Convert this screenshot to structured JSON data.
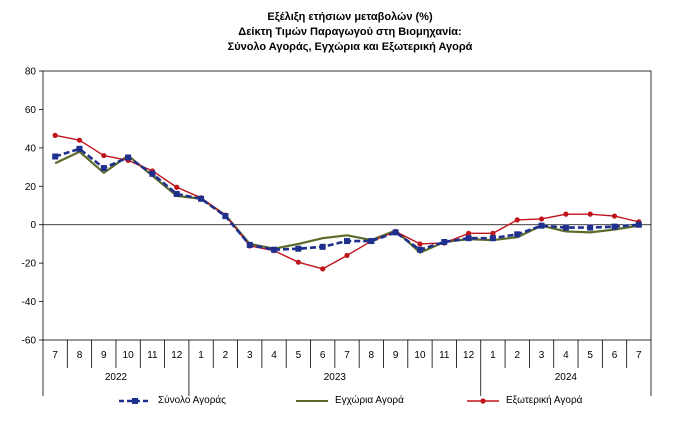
{
  "chart_data": {
    "type": "line",
    "title": [
      "Εξέλιξη ετήσιων μεταβολών (%)",
      "Δείκτη Τιμών Παραγωγού στη Βιομηχανία:",
      "Σύνολο Αγοράς, Εγχώρια και Εξωτερική Αγορά"
    ],
    "ylim": [
      -60,
      80
    ],
    "yticks": [
      "80",
      "60",
      "40",
      "20",
      "0",
      "-20",
      "-40",
      "-60"
    ],
    "x": [
      "7",
      "8",
      "9",
      "10",
      "11",
      "12",
      "1",
      "2",
      "3",
      "4",
      "5",
      "6",
      "7",
      "8",
      "9",
      "10",
      "11",
      "12",
      "1",
      "2",
      "3",
      "4",
      "5",
      "6",
      "7"
    ],
    "year_groups": [
      {
        "label": "2022",
        "start": 0,
        "end": 5
      },
      {
        "label": "2023",
        "start": 6,
        "end": 17
      },
      {
        "label": "2024",
        "start": 18,
        "end": 24
      }
    ],
    "series": [
      {
        "name": "Σύνολο Αγοράς",
        "color": "#1f2f8c",
        "style": "dashed",
        "marker": "square",
        "values": [
          35.5,
          39.5,
          29.5,
          35.0,
          26.5,
          16.0,
          13.5,
          4.5,
          -10.5,
          -13.0,
          -12.5,
          -11.5,
          -8.5,
          -8.5,
          -4.0,
          -13.0,
          -9.0,
          -7.0,
          -7.0,
          -5.0,
          -0.5,
          -1.5,
          -1.5,
          -1.0,
          0.0
        ]
      },
      {
        "name": "Εγχώρια Αγορά",
        "color": "#5b6b2a",
        "style": "solid",
        "marker": "none",
        "values": [
          32.0,
          38.0,
          27.0,
          36.0,
          25.5,
          15.0,
          13.5,
          5.0,
          -10.0,
          -12.5,
          -10.0,
          -7.0,
          -5.5,
          -8.0,
          -3.0,
          -14.5,
          -9.0,
          -7.5,
          -8.0,
          -6.5,
          -0.5,
          -3.5,
          -4.0,
          -2.5,
          -0.5
        ]
      },
      {
        "name": "Εξωτερική Αγορά",
        "color": "#c0141c",
        "style": "solid",
        "marker": "circle",
        "values": [
          46.5,
          44.0,
          36.0,
          33.5,
          28.0,
          19.5,
          14.0,
          5.0,
          -11.0,
          -13.5,
          -19.5,
          -23.0,
          -16.0,
          -8.5,
          -3.5,
          -10.0,
          -9.5,
          -4.5,
          -4.5,
          2.5,
          3.0,
          5.5,
          5.5,
          4.5,
          1.5
        ]
      }
    ],
    "grid": false,
    "legend_position": "bottom"
  }
}
